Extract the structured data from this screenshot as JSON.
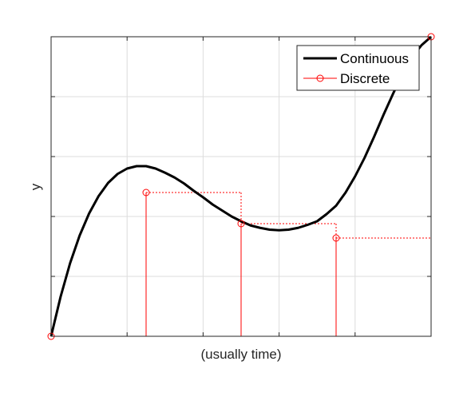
{
  "chart_data": {
    "type": "line",
    "title": "",
    "xlabel": "(usually time)",
    "ylabel": "y",
    "xlim": [
      0,
      4
    ],
    "ylim": [
      0,
      5
    ],
    "grid": true,
    "legend_location": "top-right",
    "colors": {
      "continuous": "#000000",
      "discrete": "#ff0000",
      "grid": "#dcdcdc",
      "axis": "#262626"
    },
    "series": [
      {
        "name": "Continuous",
        "style": "solid",
        "x": [
          0,
          0.1,
          0.2,
          0.3,
          0.4,
          0.5,
          0.6,
          0.7,
          0.8,
          0.9,
          1.0,
          1.1,
          1.2,
          1.3,
          1.4,
          1.5,
          1.6,
          1.7,
          1.8,
          1.9,
          2.0,
          2.1,
          2.2,
          2.3,
          2.4,
          2.5,
          2.6,
          2.7,
          2.8,
          2.9,
          3.0,
          3.1,
          3.2,
          3.3,
          3.4,
          3.5,
          3.6,
          3.7,
          3.8,
          3.9,
          4.0
        ],
        "y": [
          0,
          0.66,
          1.22,
          1.68,
          2.05,
          2.34,
          2.56,
          2.71,
          2.8,
          2.84,
          2.84,
          2.8,
          2.73,
          2.65,
          2.55,
          2.43,
          2.32,
          2.2,
          2.1,
          2.0,
          1.92,
          1.85,
          1.81,
          1.78,
          1.77,
          1.78,
          1.81,
          1.86,
          1.92,
          2.04,
          2.18,
          2.4,
          2.67,
          2.98,
          3.33,
          3.7,
          4.05,
          4.38,
          4.66,
          4.86,
          5.0
        ]
      },
      {
        "name": "Discrete",
        "style": "stairs",
        "marker": "circle",
        "x": [
          0,
          1,
          2,
          3,
          4
        ],
        "y": [
          0,
          2.4,
          1.88,
          1.64,
          5.0
        ]
      }
    ]
  }
}
